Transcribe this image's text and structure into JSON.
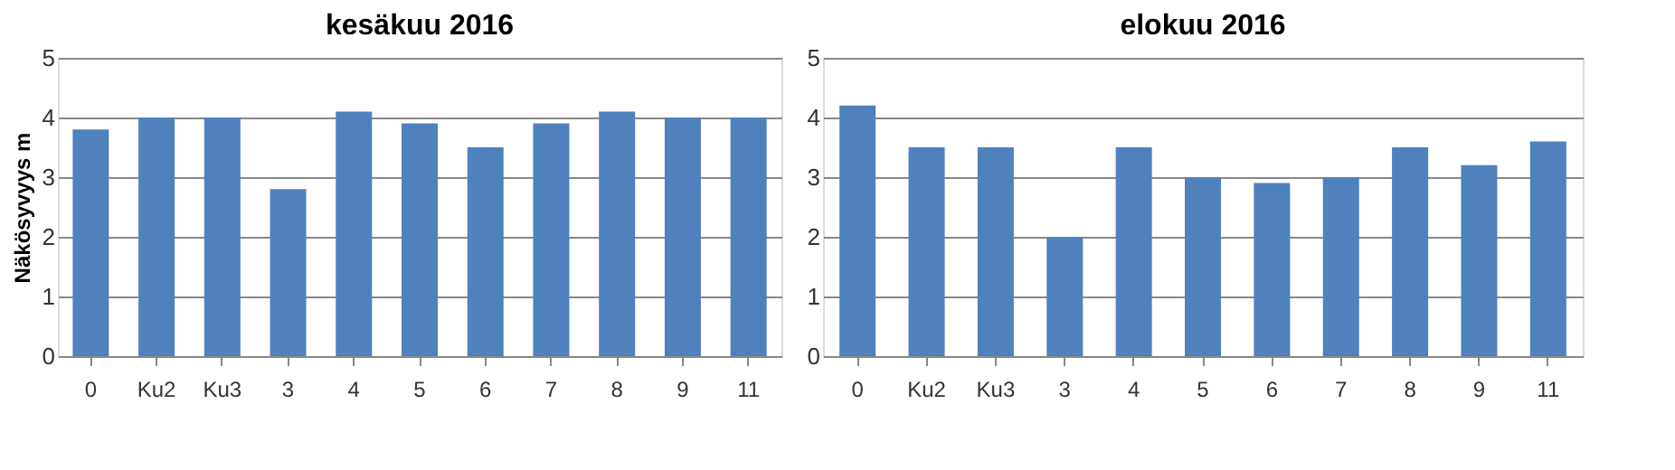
{
  "chart_data": [
    {
      "type": "bar",
      "title": "kesäkuu 2016",
      "ylabel": "Näkösyvyys m",
      "categories": [
        "0",
        "Ku2",
        "Ku3",
        "3",
        "4",
        "5",
        "6",
        "7",
        "8",
        "9",
        "11"
      ],
      "values": [
        3.8,
        4.0,
        4.0,
        2.8,
        4.1,
        3.9,
        3.5,
        3.9,
        4.1,
        4.0,
        4.0
      ],
      "color": "#4f81bd",
      "ylim": [
        0,
        5
      ],
      "yticks": [
        0,
        1,
        2,
        3,
        4,
        5
      ],
      "grid": "y"
    },
    {
      "type": "bar",
      "title": "elokuu 2016",
      "categories": [
        "0",
        "Ku2",
        "Ku3",
        "3",
        "4",
        "5",
        "6",
        "7",
        "8",
        "9",
        "11"
      ],
      "values": [
        4.2,
        3.5,
        3.5,
        2.0,
        3.5,
        3.0,
        2.9,
        3.0,
        3.5,
        3.2,
        3.6
      ],
      "color": "#4f81bd",
      "ylim": [
        0,
        5
      ],
      "yticks": [
        0,
        1,
        2,
        3,
        4,
        5
      ],
      "grid": "y"
    }
  ]
}
